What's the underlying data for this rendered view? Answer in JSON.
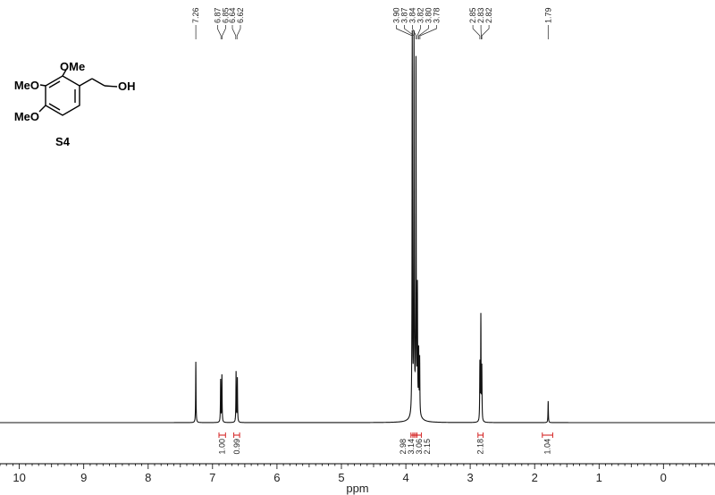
{
  "chart_data": {
    "type": "line",
    "xlabel": "ppm",
    "x_reversed": true,
    "xlim": [
      10.3,
      -0.8
    ],
    "x_ticks": [
      10,
      9,
      8,
      7,
      6,
      5,
      4,
      3,
      2,
      1,
      0
    ],
    "peak_labels": [
      {
        "ppm": 7.26,
        "label": "7.26"
      },
      {
        "ppm": 6.87,
        "label": "6.87"
      },
      {
        "ppm": 6.85,
        "label": "6.85"
      },
      {
        "ppm": 6.64,
        "label": "6.64"
      },
      {
        "ppm": 6.62,
        "label": "6.62"
      },
      {
        "ppm": 3.9,
        "label": "3.90"
      },
      {
        "ppm": 3.87,
        "label": "3.87"
      },
      {
        "ppm": 3.84,
        "label": "3.84"
      },
      {
        "ppm": 3.82,
        "label": "3.82"
      },
      {
        "ppm": 3.8,
        "label": "3.80"
      },
      {
        "ppm": 3.78,
        "label": "3.78"
      },
      {
        "ppm": 2.85,
        "label": "2.85"
      },
      {
        "ppm": 2.83,
        "label": "2.83"
      },
      {
        "ppm": 2.82,
        "label": "2.82"
      },
      {
        "ppm": 1.79,
        "label": "1.79"
      }
    ],
    "integrals": [
      {
        "from": 6.9,
        "to": 6.8,
        "value": "1.00"
      },
      {
        "from": 6.67,
        "to": 6.58,
        "value": "0.99"
      },
      {
        "from": 3.92,
        "to": 3.89,
        "value": "2.98"
      },
      {
        "from": 3.89,
        "to": 3.86,
        "value": "3.14"
      },
      {
        "from": 3.86,
        "to": 3.83,
        "value": "3.06"
      },
      {
        "from": 3.83,
        "to": 3.76,
        "value": "2.15"
      },
      {
        "from": 2.88,
        "to": 2.8,
        "value": "2.18"
      },
      {
        "from": 1.88,
        "to": 1.72,
        "value": "1.04"
      }
    ],
    "peaks": [
      {
        "ppm": 7.26,
        "height": 0.155
      },
      {
        "ppm": 6.875,
        "height": 0.108
      },
      {
        "ppm": 6.855,
        "height": 0.12
      },
      {
        "ppm": 6.635,
        "height": 0.128
      },
      {
        "ppm": 6.615,
        "height": 0.112
      },
      {
        "ppm": 3.9,
        "height": 0.99
      },
      {
        "ppm": 3.873,
        "height": 0.985
      },
      {
        "ppm": 3.842,
        "height": 0.875
      },
      {
        "ppm": 3.82,
        "height": 0.3
      },
      {
        "ppm": 3.8,
        "height": 0.15
      },
      {
        "ppm": 3.785,
        "height": 0.14
      },
      {
        "ppm": 2.85,
        "height": 0.145
      },
      {
        "ppm": 2.835,
        "height": 0.265
      },
      {
        "ppm": 2.82,
        "height": 0.135
      },
      {
        "ppm": 1.79,
        "height": 0.055
      }
    ]
  },
  "molecule": {
    "substituents": [
      "OMe",
      "MeO",
      "MeO",
      "OH"
    ],
    "compound_label": "S4"
  }
}
